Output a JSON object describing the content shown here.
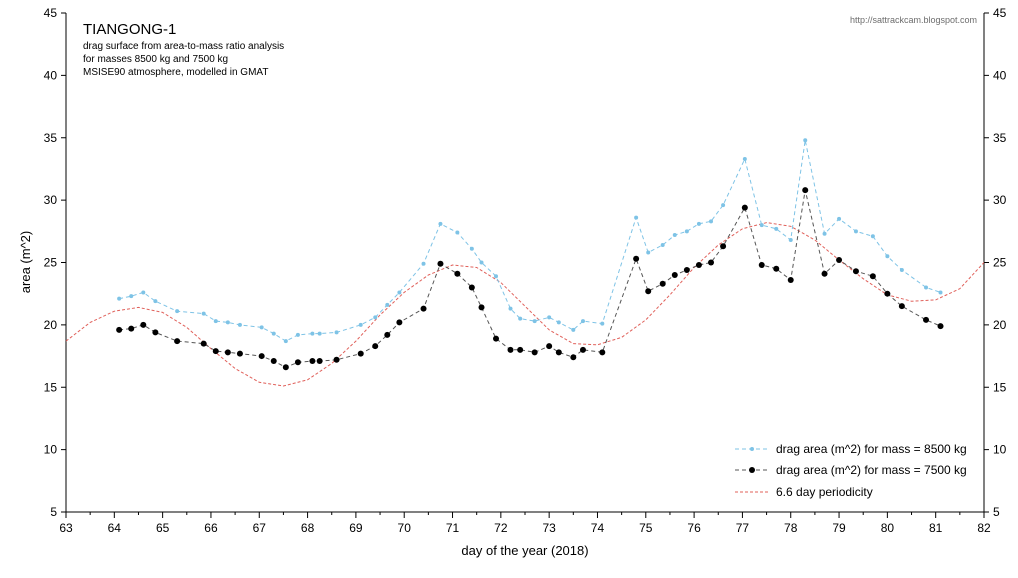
{
  "chart_data": {
    "type": "line",
    "title": "TIANGONG-1",
    "subtitle": [
      "drag surface from area-to-mass ratio analysis",
      "for masses 8500 kg and 7500 kg",
      "MSISE90 atmosphere, modelled in GMAT"
    ],
    "credit": "http://sattrackcam.blogspot.com",
    "xlabel": "day of the year (2018)",
    "ylabel": "area (m^2)",
    "xlim": [
      63,
      82
    ],
    "ylim": [
      5,
      45
    ],
    "xticks": [
      63,
      64,
      65,
      66,
      67,
      68,
      69,
      70,
      71,
      72,
      73,
      74,
      75,
      76,
      77,
      78,
      79,
      80,
      81,
      82
    ],
    "yticks": [
      5,
      10,
      15,
      20,
      25,
      30,
      35,
      40,
      45
    ],
    "legend_position": "bottom-right",
    "colors": {
      "series_8500": "#7ec3e6",
      "series_7500": "#000000",
      "line_7500": "#555555",
      "periodicity": "#e0605a",
      "axis": "#000000"
    },
    "series": [
      {
        "name": "drag area (m^2) for mass = 8500 kg",
        "x": [
          64.1,
          64.35,
          64.6,
          64.85,
          65.3,
          65.85,
          66.1,
          66.35,
          66.6,
          67.05,
          67.3,
          67.55,
          67.8,
          68.1,
          68.25,
          68.6,
          69.1,
          69.4,
          69.65,
          69.9,
          70.4,
          70.75,
          71.1,
          71.4,
          71.6,
          71.9,
          72.2,
          72.4,
          72.7,
          73.0,
          73.2,
          73.5,
          73.7,
          74.1,
          74.8,
          75.05,
          75.35,
          75.6,
          75.85,
          76.1,
          76.35,
          76.6,
          77.05,
          77.4,
          77.7,
          78.0,
          78.3,
          78.7,
          79.0,
          79.35,
          79.7,
          80.0,
          80.3,
          80.8,
          81.1
        ],
        "values": [
          22.1,
          22.3,
          22.6,
          21.9,
          21.1,
          20.9,
          20.3,
          20.2,
          20.0,
          19.8,
          19.3,
          18.7,
          19.2,
          19.3,
          19.3,
          19.4,
          20.0,
          20.6,
          21.6,
          22.6,
          24.9,
          28.1,
          27.4,
          26.1,
          25.0,
          23.9,
          21.3,
          20.5,
          20.3,
          20.6,
          20.2,
          19.6,
          20.3,
          20.1,
          28.6,
          25.8,
          26.4,
          27.2,
          27.5,
          28.1,
          28.3,
          29.6,
          33.3,
          28.0,
          27.7,
          26.8,
          34.8,
          27.3,
          28.5,
          27.5,
          27.1,
          25.5,
          24.4,
          23.0,
          22.6
        ]
      },
      {
        "name": "drag area (m^2) for mass = 7500 kg",
        "x": [
          64.1,
          64.35,
          64.6,
          64.85,
          65.3,
          65.85,
          66.1,
          66.35,
          66.6,
          67.05,
          67.3,
          67.55,
          67.8,
          68.1,
          68.25,
          68.6,
          69.1,
          69.4,
          69.65,
          69.9,
          70.4,
          70.75,
          71.1,
          71.4,
          71.6,
          71.9,
          72.2,
          72.4,
          72.7,
          73.0,
          73.2,
          73.5,
          73.7,
          74.1,
          74.8,
          75.05,
          75.35,
          75.6,
          75.85,
          76.1,
          76.35,
          76.6,
          77.05,
          77.4,
          77.7,
          78.0,
          78.3,
          78.7,
          79.0,
          79.35,
          79.7,
          80.0,
          80.3,
          80.8,
          81.1
        ],
        "values": [
          19.6,
          19.7,
          20.0,
          19.4,
          18.7,
          18.5,
          17.9,
          17.8,
          17.7,
          17.5,
          17.1,
          16.6,
          17.0,
          17.1,
          17.1,
          17.2,
          17.7,
          18.3,
          19.2,
          20.2,
          21.3,
          24.9,
          24.1,
          23.0,
          21.4,
          18.9,
          18.0,
          18.0,
          17.8,
          18.3,
          17.8,
          17.4,
          18.0,
          17.8,
          25.3,
          22.7,
          23.3,
          24.0,
          24.4,
          24.8,
          25.0,
          26.3,
          29.4,
          24.8,
          24.5,
          23.6,
          30.8,
          24.1,
          25.2,
          24.3,
          23.9,
          22.5,
          21.5,
          20.4,
          19.9
        ]
      },
      {
        "name": "6.6 day periodicity",
        "x": [
          63.0,
          63.5,
          64.0,
          64.5,
          65.0,
          65.5,
          66.0,
          66.5,
          67.0,
          67.5,
          68.0,
          68.5,
          69.0,
          69.5,
          70.0,
          70.5,
          71.0,
          71.5,
          72.0,
          72.5,
          73.0,
          73.5,
          74.0,
          74.5,
          75.0,
          75.5,
          76.0,
          76.5,
          77.0,
          77.5,
          78.0,
          78.5,
          79.0,
          79.5,
          80.0,
          80.5,
          81.0,
          81.5,
          82.0
        ],
        "values": [
          18.7,
          20.2,
          21.1,
          21.4,
          21.0,
          19.8,
          18.1,
          16.5,
          15.4,
          15.1,
          15.6,
          16.9,
          18.7,
          20.8,
          22.6,
          24.0,
          24.8,
          24.6,
          23.4,
          21.5,
          19.6,
          18.5,
          18.4,
          19.0,
          20.4,
          22.4,
          24.6,
          26.4,
          27.7,
          28.2,
          27.9,
          26.8,
          25.2,
          23.7,
          22.4,
          21.9,
          22.0,
          22.9,
          25.0
        ]
      }
    ]
  }
}
